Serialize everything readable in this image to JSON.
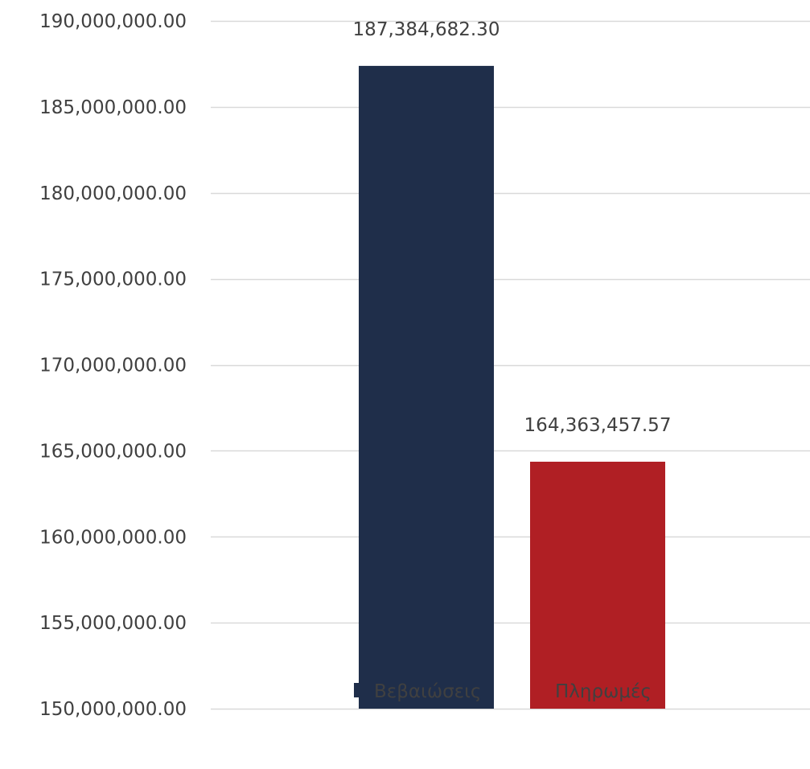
{
  "chart_data": {
    "type": "bar",
    "categories": [
      "Βεβαιώσεις",
      "Πληρωμές"
    ],
    "series": [
      {
        "name": "Βεβαιώσεις",
        "value": 187384682.3,
        "label": "187,384,682.30",
        "color": "#1f2e4a"
      },
      {
        "name": "Πληρωμές",
        "value": 164363457.57,
        "label": "164,363,457.57",
        "color": "#b01f24"
      }
    ],
    "ylim": [
      150000000,
      190000000
    ],
    "yticks": [
      {
        "value": 150000000,
        "label": "150,000,000.00"
      },
      {
        "value": 155000000,
        "label": "155,000,000.00"
      },
      {
        "value": 160000000,
        "label": "160,000,000.00"
      },
      {
        "value": 165000000,
        "label": "165,000,000.00"
      },
      {
        "value": 170000000,
        "label": "170,000,000.00"
      },
      {
        "value": 175000000,
        "label": "175,000,000.00"
      },
      {
        "value": 180000000,
        "label": "180,000,000.00"
      },
      {
        "value": 185000000,
        "label": "185,000,000.00"
      },
      {
        "value": 190000000,
        "label": "190,000,000.00"
      }
    ],
    "grid": true,
    "gridColor": "#d9d9d9",
    "legend": "bottom"
  }
}
